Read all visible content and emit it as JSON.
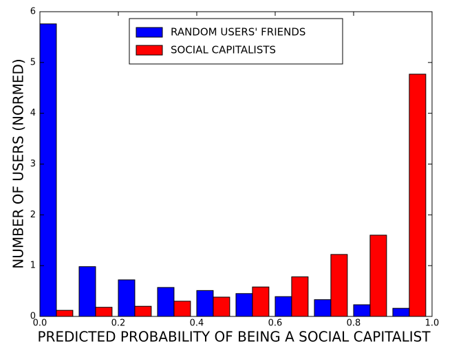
{
  "chart_data": {
    "type": "histogram",
    "xlabel": "PREDICTED PROBABILITY OF BEING A SOCIAL CAPITALIST",
    "ylabel": "NUMBER OF USERS (NORMED)",
    "bins": [
      0,
      0.1,
      0.2,
      0.3,
      0.4,
      0.5,
      0.6,
      0.7,
      0.8,
      0.9,
      1.0
    ],
    "series": [
      {
        "name": "RANDOM USERS' FRIENDS",
        "color": "#0000ff",
        "values": [
          5.76,
          0.98,
          0.72,
          0.57,
          0.51,
          0.45,
          0.39,
          0.33,
          0.23,
          0.16
        ]
      },
      {
        "name": "SOCIAL CAPITALISTS",
        "color": "#ff0000",
        "values": [
          0.12,
          0.18,
          0.2,
          0.3,
          0.38,
          0.58,
          0.78,
          1.22,
          1.6,
          4.77
        ]
      }
    ],
    "xlim": [
      0,
      1.0
    ],
    "xticks": [
      {
        "value": 0,
        "label": "0.0"
      },
      {
        "value": 0.2,
        "label": "0.2"
      },
      {
        "value": 0.4,
        "label": "0.4"
      },
      {
        "value": 0.6,
        "label": "0.6"
      },
      {
        "value": 0.8,
        "label": "0.8"
      },
      {
        "value": 1.0,
        "label": "1.0"
      }
    ],
    "ylim": [
      0,
      6
    ],
    "yticks": [
      0,
      1,
      2,
      3,
      4,
      5,
      6
    ],
    "legend": "upper center",
    "grid": false
  }
}
